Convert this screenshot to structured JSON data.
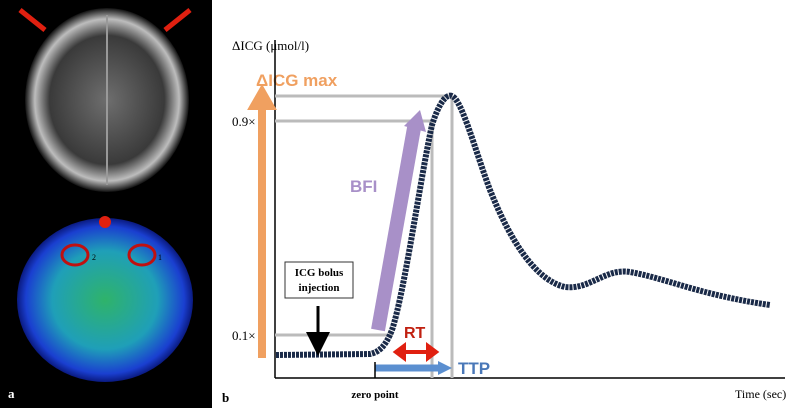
{
  "panel_a": {
    "label": "a",
    "roi_labels": [
      "2",
      "1"
    ]
  },
  "panel_b": {
    "label": "b",
    "y_axis_label": "ΔICG (μmol/l)",
    "max_label": "ΔICG max",
    "levels": [
      "0.9×",
      "0.1×"
    ],
    "bfi": "BFI",
    "injection": [
      "ICG bolus",
      "injection"
    ],
    "rt": "RT",
    "ttp": "TTP",
    "zero_point": "zero point",
    "x_axis_label": "Time (sec)"
  }
}
